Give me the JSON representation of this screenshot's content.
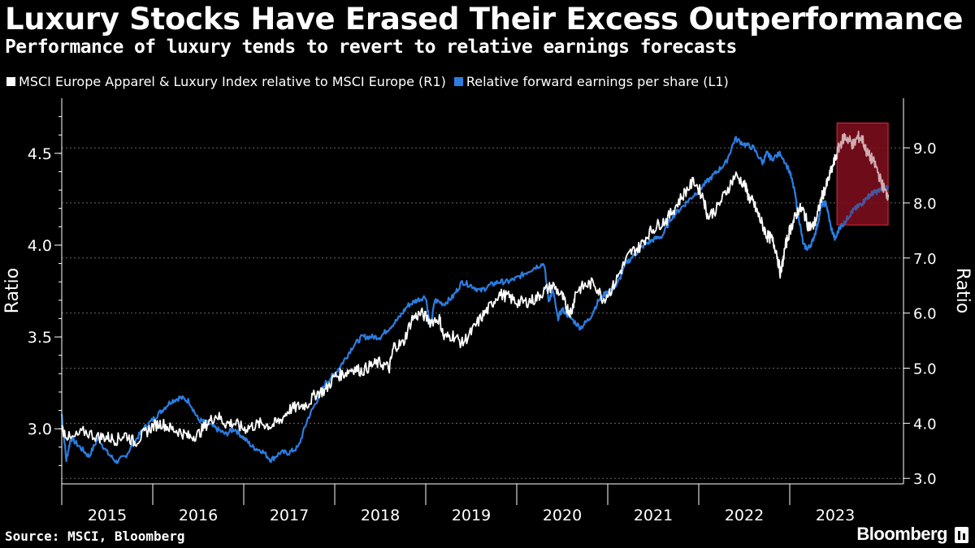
{
  "header": {
    "title": "Luxury Stocks Have Erased Their Excess Outperformance",
    "subtitle": "Performance of luxury tends to revert to relative earnings forecasts"
  },
  "footer": {
    "source": "Source: MSCI, Bloomberg",
    "brand": "Bloomberg"
  },
  "colors": {
    "background": "#000000",
    "ratio_series": "#ffffff",
    "eps_series": "#2b7de0",
    "highlight_fill": "#7a0e1e",
    "highlight_border": "#e02b3a",
    "grid": "#666666"
  },
  "chart_data": {
    "type": "line",
    "title": "Luxury Stocks Have Erased Their Excess Outperformance",
    "subtitle": "Performance of luxury tends to revert to relative earnings forecasts",
    "left_axis": {
      "label": "Ratio",
      "min": 2.7,
      "max": 4.8,
      "ticks": [
        3.0,
        3.5,
        4.0,
        4.5
      ],
      "tick_labels": [
        "3.0",
        "3.5",
        "4.0",
        "4.5"
      ]
    },
    "right_axis": {
      "label": "Ratio",
      "min": 2.9,
      "max": 9.9,
      "ticks": [
        3.0,
        4.0,
        5.0,
        6.0,
        7.0,
        8.0,
        9.0
      ],
      "tick_labels": [
        "3.0",
        "4.0",
        "5.0",
        "6.0",
        "7.0",
        "8.0",
        "9.0"
      ]
    },
    "x_axis": {
      "min": 2014.5,
      "max": 2023.75,
      "year_ticks": [
        2015,
        2016,
        2017,
        2018,
        2019,
        2020,
        2021,
        2022,
        2023
      ],
      "year_labels": [
        "2015",
        "2016",
        "2017",
        "2018",
        "2019",
        "2020",
        "2021",
        "2022",
        "2023"
      ]
    },
    "grid": true,
    "legend_position": "top-left",
    "highlight_region": {
      "x_start": 2023.02,
      "x_end": 2023.58,
      "y_right_low": 7.6,
      "y_right_high": 9.45
    },
    "series": [
      {
        "name": "MSCI Europe Apparel & Luxury Index relative to MSCI Europe (R1)",
        "axis": "right",
        "color": "#ffffff",
        "points": [
          [
            2014.5,
            3.9
          ],
          [
            2014.6,
            3.7
          ],
          [
            2014.75,
            3.85
          ],
          [
            2014.9,
            3.75
          ],
          [
            2015.0,
            3.75
          ],
          [
            2015.1,
            3.7
          ],
          [
            2015.2,
            3.8
          ],
          [
            2015.3,
            3.65
          ],
          [
            2015.4,
            3.8
          ],
          [
            2015.5,
            3.95
          ],
          [
            2015.6,
            4.0
          ],
          [
            2015.7,
            3.9
          ],
          [
            2015.8,
            3.85
          ],
          [
            2015.9,
            3.75
          ],
          [
            2016.0,
            3.8
          ],
          [
            2016.1,
            4.0
          ],
          [
            2016.2,
            4.15
          ],
          [
            2016.3,
            4.0
          ],
          [
            2016.4,
            4.0
          ],
          [
            2016.5,
            3.9
          ],
          [
            2016.6,
            3.95
          ],
          [
            2016.7,
            4.0
          ],
          [
            2016.8,
            3.95
          ],
          [
            2016.9,
            4.05
          ],
          [
            2017.0,
            4.25
          ],
          [
            2017.1,
            4.3
          ],
          [
            2017.2,
            4.35
          ],
          [
            2017.3,
            4.55
          ],
          [
            2017.4,
            4.6
          ],
          [
            2017.5,
            4.85
          ],
          [
            2017.6,
            4.9
          ],
          [
            2017.7,
            5.0
          ],
          [
            2017.8,
            4.95
          ],
          [
            2017.9,
            5.05
          ],
          [
            2018.0,
            5.1
          ],
          [
            2018.1,
            5.0
          ],
          [
            2018.15,
            5.4
          ],
          [
            2018.25,
            5.45
          ],
          [
            2018.35,
            5.9
          ],
          [
            2018.45,
            6.0
          ],
          [
            2018.55,
            5.85
          ],
          [
            2018.65,
            5.9
          ],
          [
            2018.7,
            5.55
          ],
          [
            2018.8,
            5.6
          ],
          [
            2018.9,
            5.45
          ],
          [
            2019.0,
            5.65
          ],
          [
            2019.1,
            5.9
          ],
          [
            2019.2,
            6.1
          ],
          [
            2019.3,
            6.35
          ],
          [
            2019.4,
            6.3
          ],
          [
            2019.5,
            6.2
          ],
          [
            2019.6,
            6.2
          ],
          [
            2019.7,
            6.25
          ],
          [
            2019.8,
            6.4
          ],
          [
            2019.9,
            6.5
          ],
          [
            2020.0,
            6.3
          ],
          [
            2020.05,
            6.1
          ],
          [
            2020.1,
            6.0
          ],
          [
            2020.15,
            6.4
          ],
          [
            2020.25,
            6.5
          ],
          [
            2020.35,
            6.55
          ],
          [
            2020.45,
            6.25
          ],
          [
            2020.55,
            6.45
          ],
          [
            2020.65,
            6.8
          ],
          [
            2020.75,
            7.1
          ],
          [
            2020.85,
            7.2
          ],
          [
            2020.95,
            7.45
          ],
          [
            2021.05,
            7.6
          ],
          [
            2021.15,
            7.7
          ],
          [
            2021.25,
            7.95
          ],
          [
            2021.35,
            8.2
          ],
          [
            2021.45,
            8.4
          ],
          [
            2021.55,
            8.1
          ],
          [
            2021.6,
            7.75
          ],
          [
            2021.7,
            7.9
          ],
          [
            2021.8,
            8.2
          ],
          [
            2021.9,
            8.5
          ],
          [
            2022.0,
            8.35
          ],
          [
            2022.05,
            8.1
          ],
          [
            2022.1,
            8.0
          ],
          [
            2022.15,
            7.8
          ],
          [
            2022.2,
            7.6
          ],
          [
            2022.25,
            7.4
          ],
          [
            2022.3,
            7.35
          ],
          [
            2022.35,
            7.15
          ],
          [
            2022.4,
            6.7
          ],
          [
            2022.45,
            7.2
          ],
          [
            2022.5,
            7.5
          ],
          [
            2022.55,
            7.7
          ],
          [
            2022.6,
            7.9
          ],
          [
            2022.65,
            7.85
          ],
          [
            2022.7,
            7.6
          ],
          [
            2022.75,
            7.55
          ],
          [
            2022.8,
            7.75
          ],
          [
            2022.85,
            8.1
          ],
          [
            2022.9,
            8.3
          ],
          [
            2022.95,
            8.55
          ],
          [
            2023.0,
            8.8
          ],
          [
            2023.05,
            9.05
          ],
          [
            2023.1,
            9.2
          ],
          [
            2023.15,
            9.15
          ],
          [
            2023.2,
            9.05
          ],
          [
            2023.25,
            9.2
          ],
          [
            2023.3,
            9.15
          ],
          [
            2023.35,
            8.9
          ],
          [
            2023.4,
            8.8
          ],
          [
            2023.45,
            8.65
          ],
          [
            2023.5,
            8.4
          ],
          [
            2023.55,
            8.2
          ],
          [
            2023.58,
            8.15
          ]
        ]
      },
      {
        "name": "Relative forward earnings per share (L1)",
        "axis": "left",
        "color": "#2b7de0",
        "points": [
          [
            2014.5,
            3.08
          ],
          [
            2014.55,
            2.83
          ],
          [
            2014.6,
            2.95
          ],
          [
            2014.7,
            2.9
          ],
          [
            2014.8,
            2.85
          ],
          [
            2014.9,
            2.95
          ],
          [
            2015.0,
            2.87
          ],
          [
            2015.1,
            2.82
          ],
          [
            2015.2,
            2.85
          ],
          [
            2015.3,
            2.93
          ],
          [
            2015.4,
            3.0
          ],
          [
            2015.5,
            3.05
          ],
          [
            2015.6,
            3.1
          ],
          [
            2015.7,
            3.15
          ],
          [
            2015.8,
            3.17
          ],
          [
            2015.9,
            3.15
          ],
          [
            2016.0,
            3.05
          ],
          [
            2016.1,
            3.03
          ],
          [
            2016.2,
            3.0
          ],
          [
            2016.3,
            2.97
          ],
          [
            2016.4,
            3.0
          ],
          [
            2016.5,
            2.95
          ],
          [
            2016.6,
            2.9
          ],
          [
            2016.7,
            2.88
          ],
          [
            2016.8,
            2.83
          ],
          [
            2016.9,
            2.87
          ],
          [
            2017.0,
            2.87
          ],
          [
            2017.1,
            2.9
          ],
          [
            2017.2,
            3.05
          ],
          [
            2017.3,
            3.15
          ],
          [
            2017.4,
            3.25
          ],
          [
            2017.5,
            3.3
          ],
          [
            2017.6,
            3.37
          ],
          [
            2017.7,
            3.45
          ],
          [
            2017.8,
            3.5
          ],
          [
            2017.9,
            3.5
          ],
          [
            2018.0,
            3.5
          ],
          [
            2018.1,
            3.55
          ],
          [
            2018.2,
            3.6
          ],
          [
            2018.3,
            3.67
          ],
          [
            2018.4,
            3.7
          ],
          [
            2018.5,
            3.72
          ],
          [
            2018.55,
            3.55
          ],
          [
            2018.6,
            3.7
          ],
          [
            2018.7,
            3.68
          ],
          [
            2018.8,
            3.72
          ],
          [
            2018.9,
            3.8
          ],
          [
            2019.0,
            3.78
          ],
          [
            2019.1,
            3.75
          ],
          [
            2019.2,
            3.78
          ],
          [
            2019.3,
            3.8
          ],
          [
            2019.4,
            3.8
          ],
          [
            2019.5,
            3.82
          ],
          [
            2019.6,
            3.85
          ],
          [
            2019.7,
            3.88
          ],
          [
            2019.8,
            3.9
          ],
          [
            2019.85,
            3.7
          ],
          [
            2019.9,
            3.75
          ],
          [
            2019.95,
            3.6
          ],
          [
            2020.0,
            3.65
          ],
          [
            2020.1,
            3.6
          ],
          [
            2020.2,
            3.55
          ],
          [
            2020.3,
            3.6
          ],
          [
            2020.4,
            3.7
          ],
          [
            2020.5,
            3.75
          ],
          [
            2020.6,
            3.78
          ],
          [
            2020.7,
            3.9
          ],
          [
            2020.8,
            3.95
          ],
          [
            2020.9,
            4.0
          ],
          [
            2021.0,
            4.03
          ],
          [
            2021.1,
            4.05
          ],
          [
            2021.2,
            4.15
          ],
          [
            2021.3,
            4.2
          ],
          [
            2021.4,
            4.25
          ],
          [
            2021.5,
            4.3
          ],
          [
            2021.6,
            4.35
          ],
          [
            2021.7,
            4.4
          ],
          [
            2021.8,
            4.45
          ],
          [
            2021.9,
            4.58
          ],
          [
            2022.0,
            4.55
          ],
          [
            2022.1,
            4.53
          ],
          [
            2022.2,
            4.45
          ],
          [
            2022.25,
            4.5
          ],
          [
            2022.3,
            4.47
          ],
          [
            2022.4,
            4.5
          ],
          [
            2022.5,
            4.4
          ],
          [
            2022.55,
            4.3
          ],
          [
            2022.6,
            4.15
          ],
          [
            2022.65,
            4.0
          ],
          [
            2022.7,
            3.98
          ],
          [
            2022.75,
            4.02
          ],
          [
            2022.8,
            4.1
          ],
          [
            2022.85,
            4.22
          ],
          [
            2022.9,
            4.23
          ],
          [
            2022.95,
            4.1
          ],
          [
            2023.0,
            4.03
          ],
          [
            2023.05,
            4.1
          ],
          [
            2023.1,
            4.12
          ],
          [
            2023.15,
            4.16
          ],
          [
            2023.2,
            4.19
          ],
          [
            2023.25,
            4.21
          ],
          [
            2023.3,
            4.23
          ],
          [
            2023.35,
            4.26
          ],
          [
            2023.4,
            4.28
          ],
          [
            2023.45,
            4.29
          ],
          [
            2023.5,
            4.3
          ],
          [
            2023.58,
            4.32
          ]
        ]
      }
    ]
  }
}
